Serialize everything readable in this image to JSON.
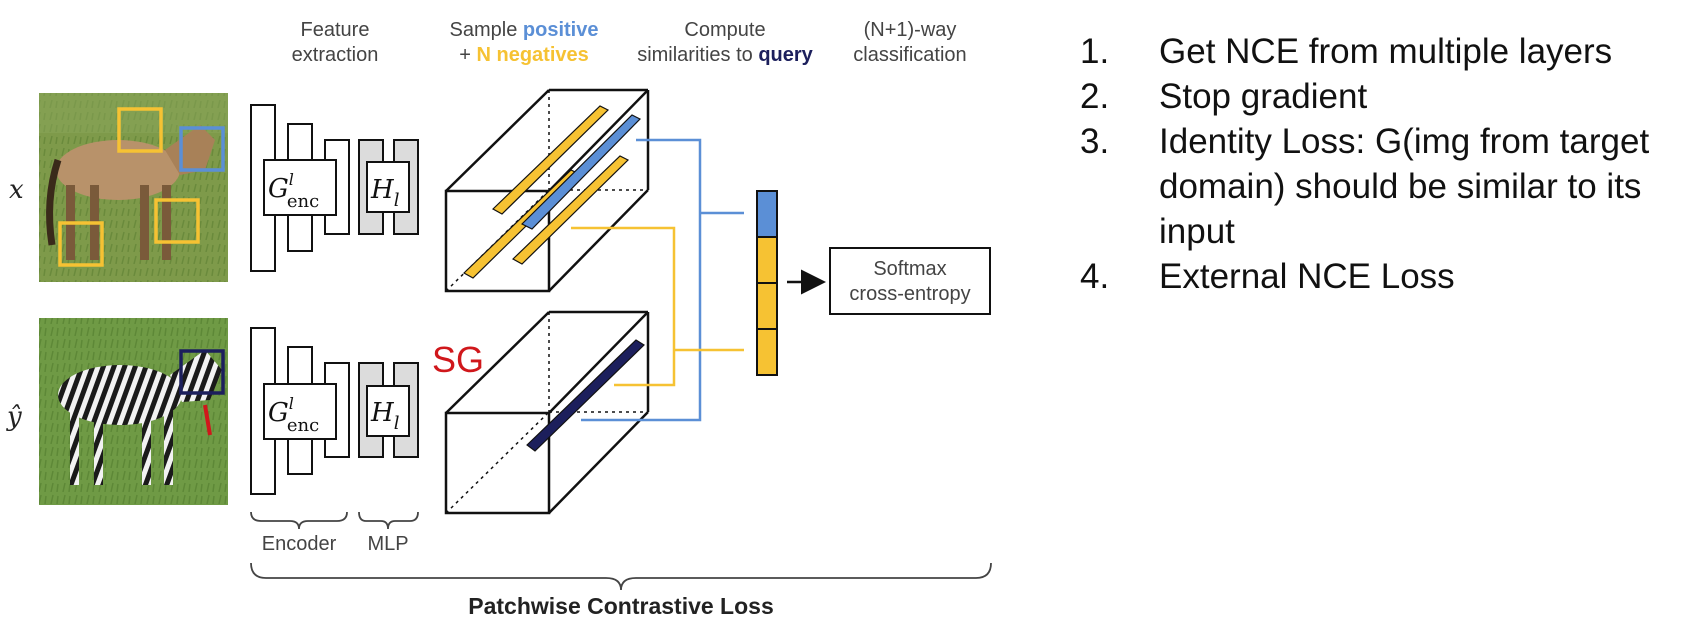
{
  "colors": {
    "positive": "#5b8fd6",
    "negative": "#f6c233",
    "query": "#1c1f5c",
    "sg": "#d0171b",
    "mlp_fill": "#dcdcdc"
  },
  "headers": {
    "feature": [
      "Feature",
      "extraction"
    ],
    "sample_prefix": "Sample ",
    "sample_pos": "positive",
    "sample_plus": "+ ",
    "sample_neg": "N negatives",
    "compute_line1": "Compute",
    "compute_prefix": "similarities to ",
    "compute_query": "query",
    "classify": [
      "(N+1)-way",
      "classification"
    ]
  },
  "inputs": {
    "x": "x",
    "y_hat": "ŷ"
  },
  "encoder_symbol": {
    "base": "G",
    "sup": "l",
    "sub": "enc"
  },
  "mlp_symbol": {
    "base": "H",
    "sub": "l"
  },
  "sg_label": "SG",
  "softmax": [
    "Softmax",
    "cross-entropy"
  ],
  "bottom": {
    "encoder": "Encoder",
    "mlp": "MLP",
    "title": "Patchwise Contrastive Loss"
  },
  "list": {
    "items": [
      {
        "num": "1.",
        "lines": [
          "Get NCE from multiple layers"
        ]
      },
      {
        "num": "2.",
        "lines": [
          "Stop gradient"
        ]
      },
      {
        "num": "3.",
        "lines": [
          "Identity Loss: G(img from target",
          "domain) should be similar to its",
          "input"
        ]
      },
      {
        "num": "4.",
        "lines": [
          "External NCE Loss"
        ]
      }
    ]
  }
}
